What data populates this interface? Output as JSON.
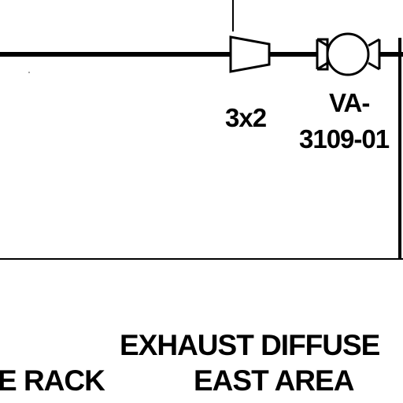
{
  "colors": {
    "line": "#000000",
    "background": "#ffffff",
    "text": "#000000"
  },
  "labels": {
    "reducer_size": "3x2",
    "valve_tag_line1": "VA-",
    "valve_tag_line2": "3109-01",
    "area_line1": "EXHAUST DIFFUSE",
    "area_line2": "EAST AREA",
    "rack_label": "E RACK"
  },
  "symbols": [
    "reducer-symbol",
    "valve-symbol"
  ]
}
